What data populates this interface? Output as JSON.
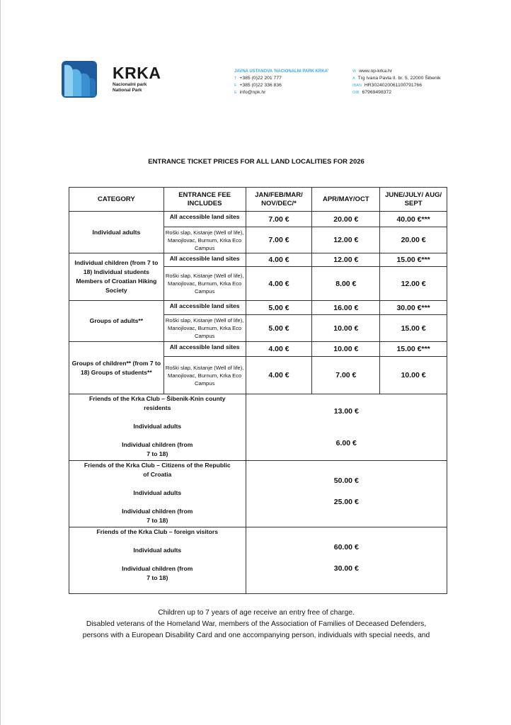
{
  "header": {
    "brand": "KRKA",
    "brand_sub": [
      "Nacionalni park",
      "National Park"
    ],
    "institution": "JAVNA USTANOVA 'NACIONALNI PARK KRKA'",
    "contacts_left": [
      {
        "label": "T",
        "value": "+385 (0)22 201 777"
      },
      {
        "label": "F",
        "value": "+385 (0)22 336 836"
      },
      {
        "label": "E",
        "value": "info@npk.hr"
      }
    ],
    "contacts_right": [
      {
        "label": "W",
        "value": "www.np-krka.hr"
      },
      {
        "label": "A",
        "value": "Trg Ivana Pavla II. br. 5, 22000 Šibenik"
      },
      {
        "label": "IBAN",
        "value": "HR3024020061100791766"
      },
      {
        "label": "OIB",
        "value": "67969498372"
      }
    ]
  },
  "title": "ENTRANCE TICKET PRICES FOR ALL LAND LOCALITIES FOR 2026",
  "table": {
    "headers": [
      "CATEGORY",
      "ENTRANCE FEE INCLUDES",
      "JAN/FEB/MAR/ NOV/DEC/*",
      "APR/MAY/OCT",
      "JUNE/JULY/ AUG/ SEPT"
    ],
    "all_sites": "All accessible land sites",
    "partial_sites": "Roški slap, Kistanje (Well of life), Manojlovac, Burnum, Krka Eco Campus",
    "groups": [
      {
        "category": "Individual adults",
        "all": [
          "7.00 €",
          "20.00 €",
          "40.00 €***"
        ],
        "partial": [
          "7.00 €",
          "12.00 €",
          "20.00 €"
        ]
      },
      {
        "category": "Individual children (from 7 to 18) Individual students Members of Croatian Hiking Society",
        "all": [
          "4.00 €",
          "12.00 €",
          "15.00 €***"
        ],
        "partial": [
          "4.00 €",
          "8.00 €",
          "12.00 €"
        ]
      },
      {
        "category": "Groups of adults**",
        "all": [
          "5.00 €",
          "16.00 €",
          "30.00 €***"
        ],
        "partial": [
          "5.00 €",
          "10.00 €",
          "15.00 €"
        ]
      },
      {
        "category": "Groups of children** (from 7 to 18) Groups of students**",
        "all": [
          "4.00 €",
          "10.00 €",
          "15.00 €***"
        ],
        "partial": [
          "4.00 €",
          "7.00 €",
          "10.00 €"
        ]
      }
    ],
    "friends": [
      {
        "title": "Friends of the Krka Club – Šibenik-Knin county residents",
        "adults": "Individual adults",
        "children": "Individual children (from 7 to 18)",
        "adult_price": "13.00 €",
        "child_price": "6.00 €"
      },
      {
        "title": "Friends of the Krka Club – Citizens of the Republic of Croatia",
        "adults": "Individual adults",
        "children": "Individual children (from 7 to 18)",
        "adult_price": "50.00 €",
        "child_price": "25.00 €"
      },
      {
        "title": "Friends of the Krka Club – foreign visitors",
        "adults": "Individual adults",
        "children": "Individual children (from 7 to 18)",
        "adult_price": "60.00 €",
        "child_price": "30.00 €"
      }
    ]
  },
  "footer": [
    "Children up to 7 years of age receive an entry free of charge.",
    "Disabled veterans of the Homeland War, members of the Association of Families of Deceased Defenders,",
    "persons with a European Disability Card and one accompanying person, individuals with special needs, and"
  ]
}
